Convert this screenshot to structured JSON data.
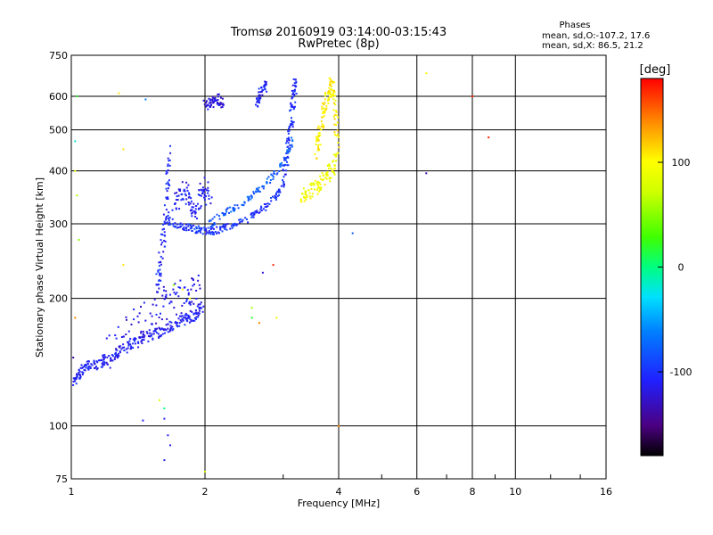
{
  "chart_data": {
    "type": "scatter",
    "title": "Tromsø 20160919 03:14:00-03:15:43",
    "subtitle": "RwPretec (8p)",
    "xlabel": "Frequency [MHz]",
    "ylabel": "Stationary phase Virtual Height [km]",
    "x_scale": "log",
    "y_scale": "log",
    "xlim": [
      1,
      16
    ],
    "ylim": [
      75,
      750
    ],
    "x_ticks": [
      "1",
      "2",
      "4",
      "6",
      "8",
      "10",
      "16"
    ],
    "x_tick_values": [
      1,
      2,
      4,
      6,
      8,
      10,
      16
    ],
    "y_ticks": [
      "75",
      "100",
      "200",
      "300",
      "400",
      "500",
      "600",
      "750"
    ],
    "y_tick_values": [
      75,
      100,
      200,
      300,
      400,
      500,
      600,
      750
    ],
    "grid": true,
    "stats": {
      "heading": "Phases",
      "line1": "mean, sd,O:-107.2, 17.6",
      "line2": "mean, sd,X:  86.5, 21.2"
    },
    "colorbar": {
      "label": "[deg]",
      "range": [
        -180,
        180
      ],
      "ticks": [
        "100",
        "0",
        "-100"
      ],
      "tick_values": [
        100,
        0,
        -100
      ]
    },
    "series": [
      {
        "traces": [
          {
            "f": [
              1.01,
              1.03,
              1.05,
              1.08,
              1.11,
              1.14,
              1.18,
              1.22,
              1.27,
              1.32,
              1.38,
              1.44,
              1.5,
              1.56,
              1.62,
              1.68,
              1.74,
              1.8,
              1.86,
              1.92,
              1.97
            ],
            "h": [
              125,
              130,
              135,
              138,
              139,
              140,
              142,
              145,
              148,
              152,
              156,
              160,
              163,
              166,
              169,
              172,
              175,
              178,
              181,
              184,
              187
            ],
            "phase": -110,
            "spread": 0.03
          },
          {
            "f": [
              1.2,
              1.3,
              1.4,
              1.5,
              1.6,
              1.7,
              1.8,
              1.9,
              1.96
            ],
            "h": [
              148,
              160,
              172,
              184,
              192,
              198,
              202,
              205,
              208
            ],
            "phase": -115,
            "spread": 0.09
          },
          {
            "f": [
              1.55,
              1.58,
              1.6,
              1.62,
              1.64,
              1.65,
              1.66
            ],
            "h": [
              200,
              230,
              260,
              290,
              330,
              380,
              450
            ],
            "phase": -105,
            "spread": 0.04
          },
          {
            "f": [
              1.65,
              1.72,
              1.8,
              1.88,
              1.95,
              2.02,
              2.1,
              2.2,
              2.32,
              2.45,
              2.6,
              2.75,
              2.9,
              3.0
            ],
            "h": [
              305,
              300,
              295,
              292,
              290,
              288,
              289,
              292,
              298,
              305,
              315,
              330,
              350,
              370
            ],
            "phase": -100,
            "spread": 0.02
          },
          {
            "f": [
              1.7,
              1.75,
              1.8,
              1.86,
              1.9,
              1.95,
              2.0,
              2.05
            ],
            "h": [
              330,
              345,
              360,
              330,
              320,
              350,
              370,
              340
            ],
            "phase": -110,
            "spread": 0.05
          },
          {
            "f": [
              2.05,
              2.15,
              2.3,
              2.45,
              2.6,
              2.75,
              2.9,
              3.05,
              3.15
            ],
            "h": [
              300,
              312,
              325,
              338,
              355,
              375,
              398,
              430,
              470
            ],
            "phase": -80,
            "spread": 0.02
          },
          {
            "f": [
              3.0,
              3.05,
              3.1,
              3.12,
              3.15,
              3.18,
              3.2
            ],
            "h": [
              380,
              420,
              470,
              520,
              570,
              620,
              660
            ],
            "phase": -105,
            "spread": 0.04
          },
          {
            "f": [
              3.3,
              3.4,
              3.5,
              3.6,
              3.7,
              3.8,
              3.9,
              3.95
            ],
            "h": [
              350,
              355,
              360,
              370,
              380,
              395,
              410,
              430
            ],
            "phase": 95,
            "spread": 0.04
          },
          {
            "f": [
              3.55,
              3.6,
              3.65,
              3.7,
              3.75,
              3.8,
              3.85,
              3.9,
              3.95,
              3.97
            ],
            "h": [
              430,
              470,
              510,
              550,
              590,
              620,
              640,
              600,
              520,
              470
            ],
            "phase": 105,
            "spread": 0.04
          },
          {
            "f": [
              2.6,
              2.65,
              2.7,
              2.75
            ],
            "h": [
              580,
              600,
              620,
              640
            ],
            "phase": -110,
            "spread": 0.03
          },
          {
            "f": [
              2.0,
              2.05,
              2.1,
              2.15,
              2.2
            ],
            "h": [
              570,
              585,
              580,
              590,
              575
            ],
            "phase": -120,
            "spread": 0.03
          }
        ],
        "points": [
          [
            1.28,
            610,
            110
          ],
          [
            1.47,
            590,
            -60
          ],
          [
            1.02,
            470,
            -20
          ],
          [
            1.02,
            400,
            90
          ],
          [
            1.31,
            450,
            110
          ],
          [
            1.03,
            350,
            60
          ],
          [
            1.04,
            275,
            50
          ],
          [
            1.02,
            180,
            140
          ],
          [
            1.31,
            240,
            110
          ],
          [
            1.7,
            215,
            50
          ],
          [
            1.78,
            210,
            100
          ],
          [
            1.85,
            200,
            100
          ],
          [
            2.55,
            190,
            60
          ],
          [
            2.55,
            180,
            20
          ],
          [
            2.65,
            175,
            140
          ],
          [
            2.85,
            240,
            170
          ],
          [
            2.9,
            180,
            90
          ],
          [
            2.7,
            230,
            -120
          ],
          [
            1.58,
            115,
            80
          ],
          [
            1.62,
            110,
            0
          ],
          [
            1.67,
            90,
            -110
          ],
          [
            1.65,
            95,
            -110
          ],
          [
            1.62,
            83,
            -115
          ],
          [
            1.45,
            103,
            -110
          ],
          [
            1.62,
            104,
            -110
          ],
          [
            2.0,
            78,
            80
          ],
          [
            4.3,
            285,
            -80
          ],
          [
            6.3,
            680,
            100
          ],
          [
            6.3,
            395,
            -140
          ],
          [
            8.0,
            600,
            170
          ],
          [
            8.7,
            480,
            170
          ],
          [
            4.0,
            100,
            140
          ],
          [
            1.03,
            600,
            20
          ],
          [
            1.01,
            145,
            -140
          ]
        ]
      }
    ]
  }
}
